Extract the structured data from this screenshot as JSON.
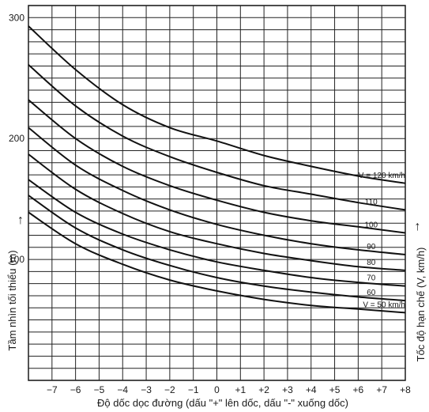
{
  "chart_data": {
    "type": "line",
    "title": "",
    "xlabel": "Độ dốc dọc đường (dấu \"+\" lên dốc, dấu \"-\" xuống dốc)",
    "ylabel": "Tầm nhìn tối thiểu (m)",
    "ylabel_arrow": "↑",
    "y2label": "Tốc độ hạn chế (V, km/h)",
    "y2label_arrow": "→",
    "xlim": [
      -8.0,
      8.0
    ],
    "ylim": [
      0,
      310
    ],
    "x_ticks": [
      -7,
      -6,
      -5,
      -4,
      -3,
      -2,
      -1,
      0,
      1,
      2,
      3,
      4,
      5,
      6,
      7,
      8
    ],
    "x_tick_labels": [
      "−7",
      "−6",
      "−5",
      "−4",
      "−3",
      "−2",
      "−1",
      "0",
      "+1",
      "+2",
      "+3",
      "+4",
      "+5",
      "+6",
      "+7",
      "+8"
    ],
    "y_ticks": [
      100,
      200,
      300
    ],
    "y_tick_labels": [
      "100",
      "200",
      "300"
    ],
    "grid": true,
    "x": [
      -8,
      -6,
      -4,
      -2,
      0,
      2,
      4,
      6,
      8
    ],
    "series": [
      {
        "name": "V = 120 km/h",
        "values": [
          293,
          257,
          228,
          209,
          198,
          186,
          177,
          169,
          163
        ]
      },
      {
        "name": "110",
        "values": [
          261,
          227,
          202,
          185,
          172,
          161,
          154,
          147,
          141
        ]
      },
      {
        "name": "100",
        "values": [
          232,
          200,
          177,
          161,
          149,
          139,
          132,
          127,
          122
        ]
      },
      {
        "name": "90",
        "values": [
          209,
          178,
          157,
          141,
          129,
          120,
          113,
          108,
          104
        ]
      },
      {
        "name": "80",
        "values": [
          187,
          158,
          138,
          123,
          113,
          105,
          99,
          94,
          91
        ]
      },
      {
        "name": "70",
        "values": [
          166,
          139,
          121,
          108,
          98,
          91,
          85,
          81,
          78
        ]
      },
      {
        "name": "60",
        "values": [
          153,
          126,
          108,
          95,
          85,
          78,
          73,
          69,
          66
        ]
      },
      {
        "name": "V = 50 km/h",
        "values": [
          139,
          113,
          96,
          83,
          74,
          67,
          62,
          59,
          56
        ]
      }
    ]
  }
}
